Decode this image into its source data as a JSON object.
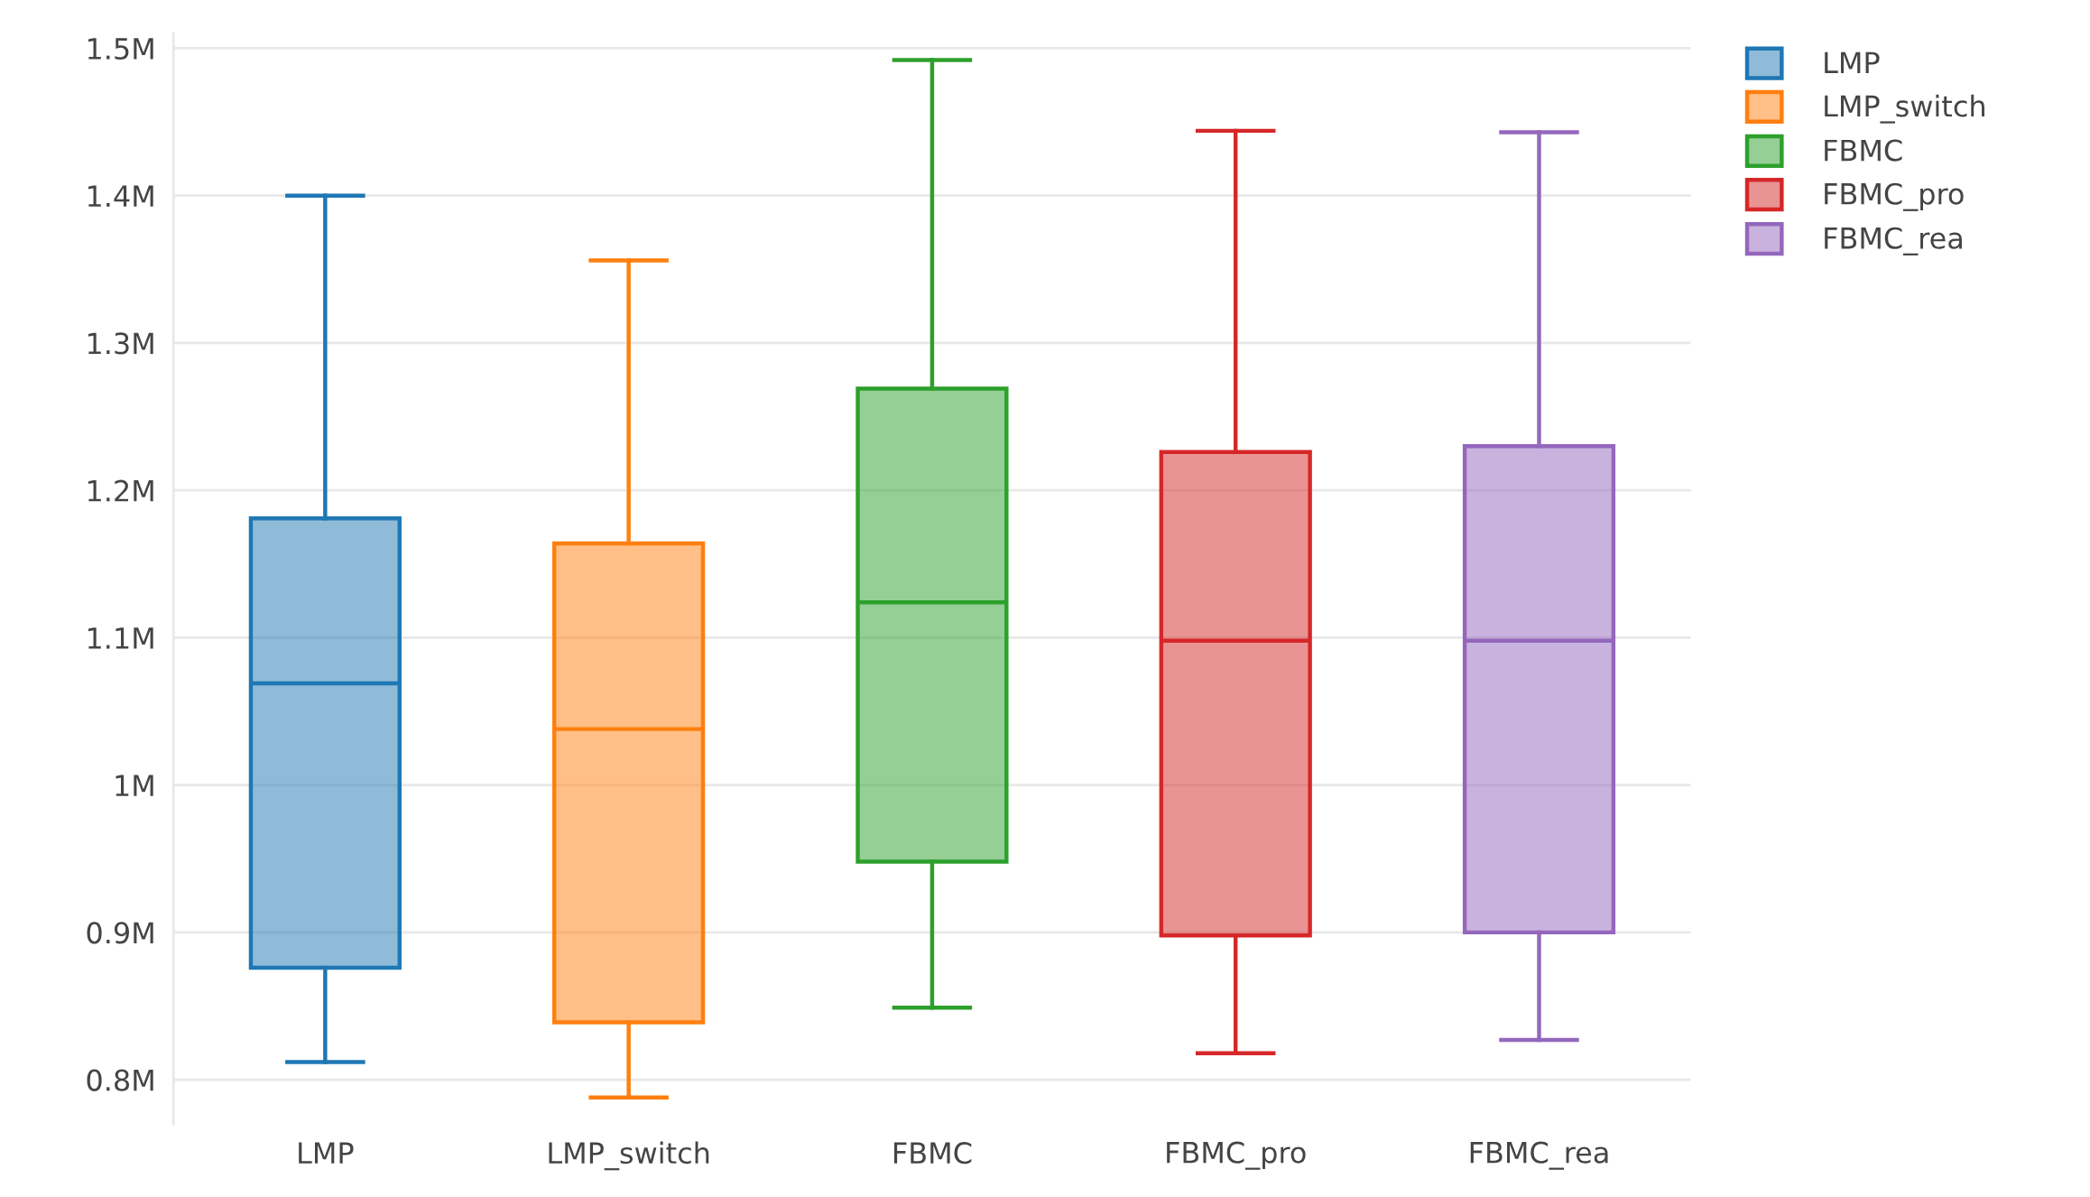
{
  "chart_data": {
    "type": "box",
    "categories": [
      "LMP",
      "LMP_switch",
      "FBMC",
      "FBMC_pro",
      "FBMC_rea"
    ],
    "series": [
      {
        "name": "LMP",
        "color": "#1f77b4",
        "boxes": [
          {
            "low": 812000,
            "q1": 876000,
            "median": 1069000,
            "q3": 1181000,
            "high": 1400000
          },
          null,
          null,
          null,
          null
        ]
      },
      {
        "name": "LMP_switch",
        "color": "#ff7f0e",
        "boxes": [
          null,
          {
            "low": 788000,
            "q1": 839000,
            "median": 1038000,
            "q3": 1164000,
            "high": 1356000
          },
          null,
          null,
          null
        ]
      },
      {
        "name": "FBMC",
        "color": "#2ca02c",
        "boxes": [
          null,
          null,
          {
            "low": 849000,
            "q1": 948000,
            "median": 1124000,
            "q3": 1269000,
            "high": 1492000
          },
          null,
          null
        ]
      },
      {
        "name": "FBMC_pro",
        "color": "#d62728",
        "boxes": [
          null,
          null,
          null,
          {
            "low": 818000,
            "q1": 898000,
            "median": 1098000,
            "q3": 1226000,
            "high": 1444000
          },
          null
        ]
      },
      {
        "name": "FBMC_rea",
        "color": "#9467bd",
        "boxes": [
          null,
          null,
          null,
          null,
          {
            "low": 827000,
            "q1": 900000,
            "median": 1098000,
            "q3": 1230000,
            "high": 1443000
          }
        ]
      }
    ],
    "ylim": [
      770000,
      1510000
    ],
    "yticks": [
      {
        "value": 800000,
        "label": "0.8M"
      },
      {
        "value": 900000,
        "label": "0.9M"
      },
      {
        "value": 1000000,
        "label": "1M"
      },
      {
        "value": 1100000,
        "label": "1.1M"
      },
      {
        "value": 1200000,
        "label": "1.2M"
      },
      {
        "value": 1300000,
        "label": "1.3M"
      },
      {
        "value": 1400000,
        "label": "1.4M"
      },
      {
        "value": 1500000,
        "label": "1.5M"
      }
    ],
    "grid": "y",
    "legend": "top right"
  }
}
